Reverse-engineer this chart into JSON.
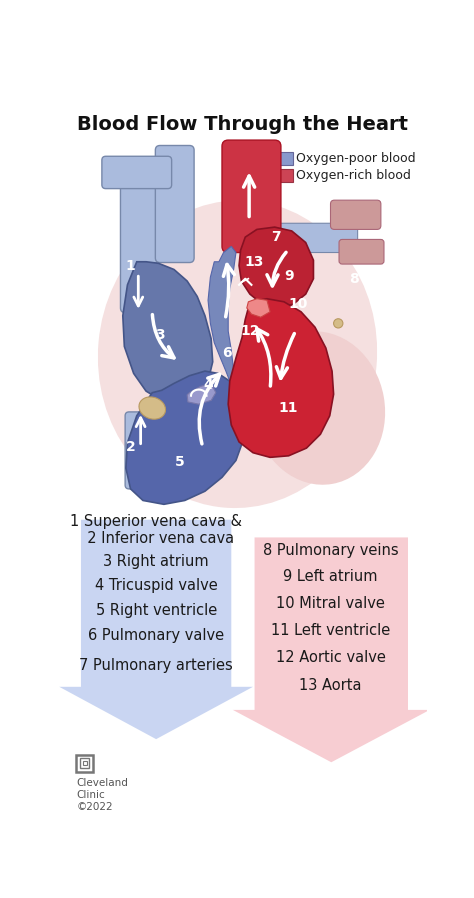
{
  "title": "Blood Flow Through the Heart",
  "title_fontsize": 14,
  "bg_color": "#ffffff",
  "legend_items": [
    {
      "label": "Oxygen-poor blood",
      "color": "#8899cc"
    },
    {
      "label": "Oxygen-rich blood",
      "color": "#cc4455"
    }
  ],
  "left_labels": [
    "1 Superior vena cava &\n  2 Inferior vena cava",
    "3 Right atrium",
    "4 Tricuspid valve",
    "5 Right ventricle",
    "6 Pulmonary valve",
    "7 Pulmonary arteries"
  ],
  "right_labels": [
    "8 Pulmonary veins",
    "9 Left atrium",
    "10 Mitral valve",
    "11 Left ventricle",
    "12 Aortic valve",
    "13 Aorta"
  ],
  "left_arrow_color": "#b8c8ee",
  "right_arrow_color": "#f4b8c0",
  "heart_blue_dark": "#5566aa",
  "heart_blue_mid": "#7788bb",
  "heart_blue_light": "#aabbdd",
  "heart_red_dark": "#aa2233",
  "heart_red_mid": "#cc3344",
  "heart_red_light": "#ee6677",
  "heart_pink": "#f0c0c0",
  "heart_pink_light": "#f8e0e0",
  "svc_blue": "#8899cc",
  "aorta_red": "#cc3344",
  "footer_text": "Cleveland\nClinic\n©2022",
  "label_fontsize": 10.5
}
